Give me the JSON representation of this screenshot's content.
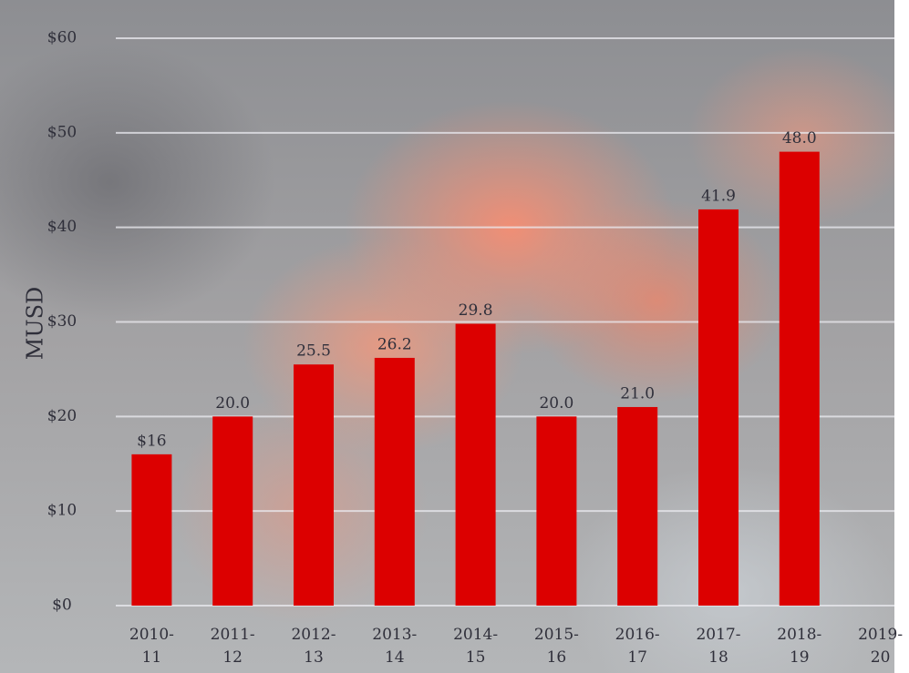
{
  "chart_data": {
    "type": "bar",
    "y_label": "MUSD",
    "categories": [
      "2010-11",
      "2011-12",
      "2012-13",
      "2013-14",
      "2014-15",
      "2015-16",
      "2016-17",
      "2017-18",
      "2018-19",
      "2019-20"
    ],
    "values": [
      16,
      20.0,
      25.5,
      26.2,
      29.8,
      20.0,
      21.0,
      41.9,
      48.0,
      null
    ],
    "value_labels": [
      "$16",
      "20.0",
      "25.5",
      "26.2",
      "29.8",
      "20.0",
      "21.0",
      "41.9",
      "48.0",
      null
    ],
    "color": "#dc0000",
    "ylim": [
      0,
      60
    ],
    "yticks": [
      {
        "value": 0,
        "label": "$0"
      },
      {
        "value": 10,
        "label": "$10"
      },
      {
        "value": 20,
        "label": "$20"
      },
      {
        "value": 30,
        "label": "$30"
      },
      {
        "value": 40,
        "label": "$40"
      },
      {
        "value": 50,
        "label": "$50"
      },
      {
        "value": 60,
        "label": "$60"
      }
    ],
    "grid": true
  }
}
